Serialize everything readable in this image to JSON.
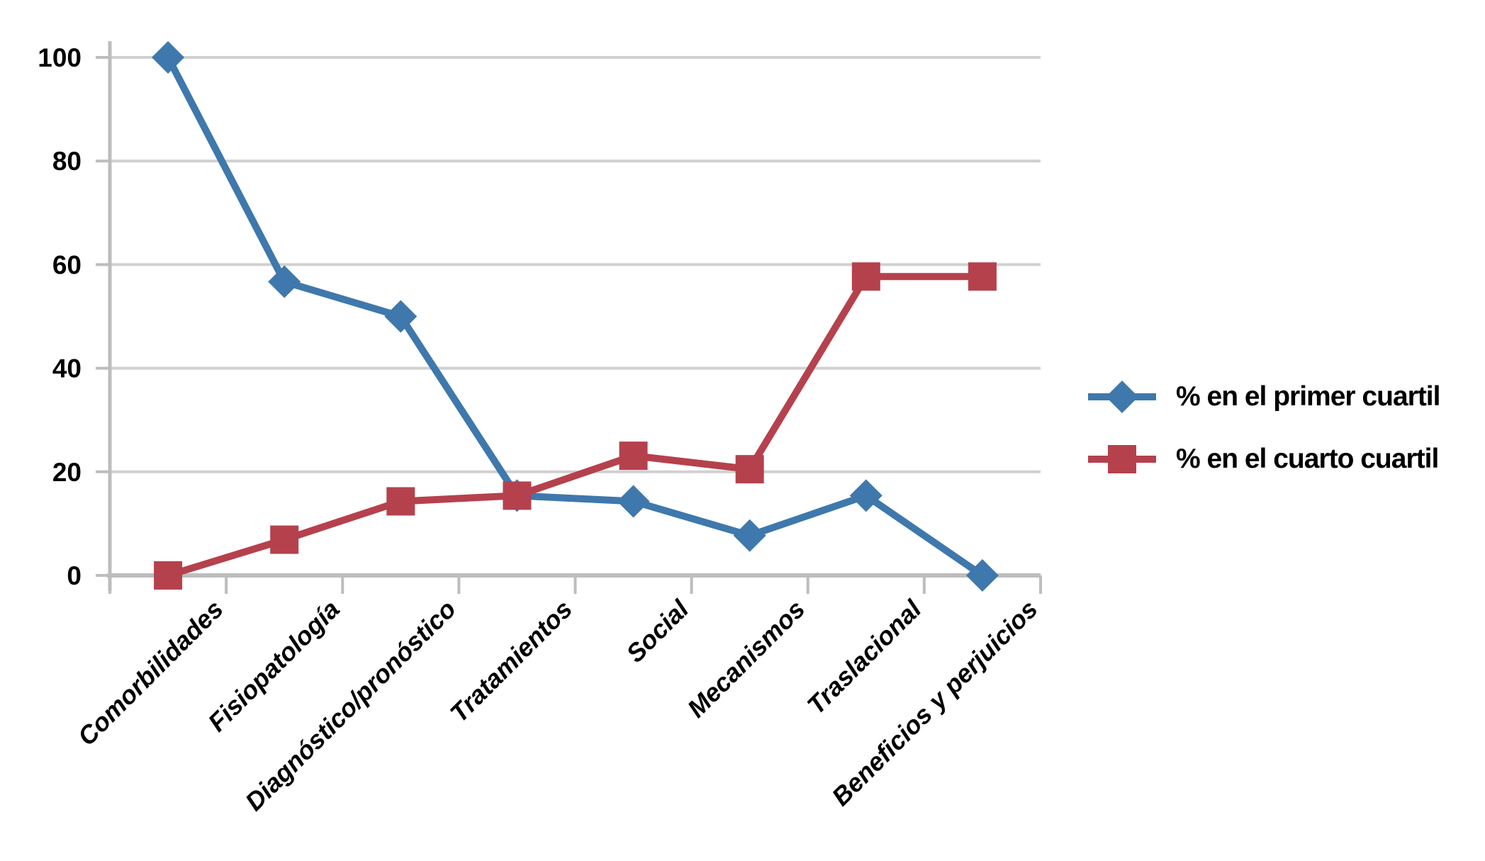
{
  "chart_data": {
    "type": "line",
    "categories": [
      "Comorbilidades",
      "Fisiopatología",
      "Diagnóstico/pronóstico",
      "Tratamientos",
      "Social",
      "Mecanismos",
      "Traslacional",
      "Beneficios y perjuicios"
    ],
    "series": [
      {
        "name": "% en el primer cuartil",
        "marker": "diamond",
        "color": "#3F78AC",
        "values": [
          100,
          56.7,
          50,
          15.4,
          14.3,
          7.7,
          15.4,
          0
        ]
      },
      {
        "name": "% en el cuarto cuartil",
        "marker": "square",
        "color": "#B5414D",
        "values": [
          0,
          6.9,
          14.3,
          15.4,
          23.1,
          20.5,
          57.7,
          57.7
        ]
      }
    ],
    "yticks": [
      0,
      20,
      40,
      60,
      80,
      100
    ],
    "ylim": [
      0,
      100
    ],
    "title": "",
    "xlabel": "",
    "ylabel": "",
    "grid": true,
    "legend_position": "right"
  },
  "colors": {
    "background": "#FFFFFF",
    "gridline": "#D0D0D0",
    "axis": "#BDBDBD",
    "tick_label": "#000000",
    "legend_text": "#000000"
  }
}
